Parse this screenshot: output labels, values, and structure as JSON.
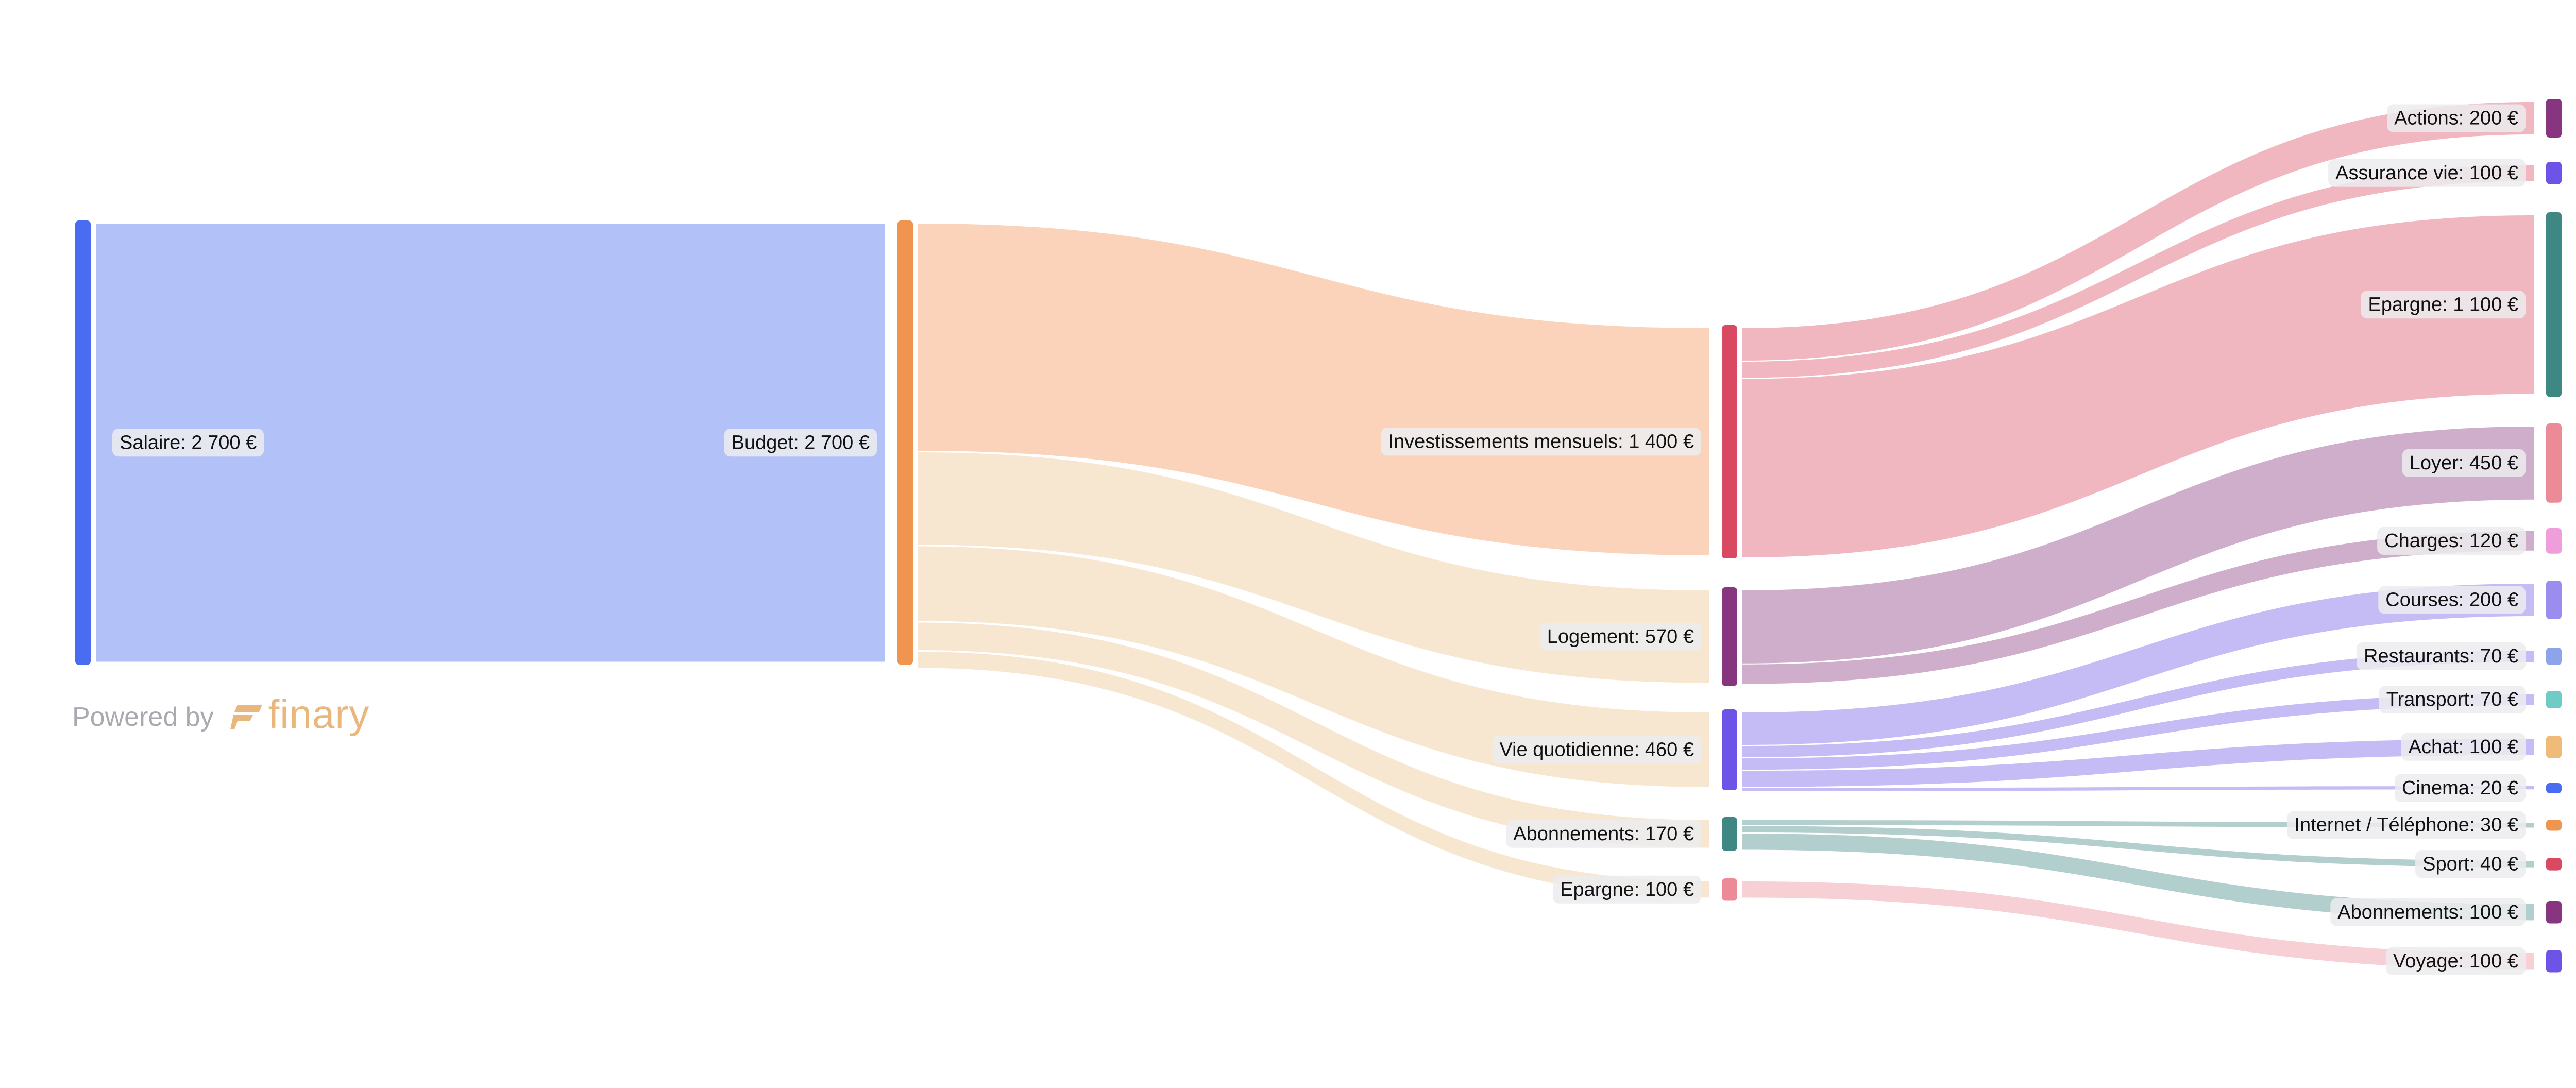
{
  "chart_data": {
    "type": "sankey",
    "currency_suffix": " €",
    "nodes": [
      {
        "id": "salaire",
        "label": "Salaire: 2 700 €",
        "value": 2700,
        "color": "#4a6cf0"
      },
      {
        "id": "budget",
        "label": "Budget: 2 700 €",
        "value": 2700,
        "color": "#f0954f"
      },
      {
        "id": "invest",
        "label": "Investissements mensuels: 1 400 €",
        "value": 1400,
        "color": "#d94a62"
      },
      {
        "id": "logement",
        "label": "Logement: 570 €",
        "value": 570,
        "color": "#86357e"
      },
      {
        "id": "vie",
        "label": "Vie quotidienne: 460 €",
        "value": 460,
        "color": "#6e54e6"
      },
      {
        "id": "abos",
        "label": "Abonnements: 170 €",
        "value": 170,
        "color": "#3e8783"
      },
      {
        "id": "epargne_mid",
        "label": "Epargne: 100 €",
        "value": 100,
        "color": "#ec8a98"
      },
      {
        "id": "actions",
        "label": "Actions: 200 €",
        "value": 200,
        "color": "#86357e"
      },
      {
        "id": "assurance",
        "label": "Assurance vie: 100 €",
        "value": 100,
        "color": "#6e54e6"
      },
      {
        "id": "epargne",
        "label": "Epargne: 1 100 €",
        "value": 1100,
        "color": "#3e8783"
      },
      {
        "id": "loyer",
        "label": "Loyer: 450 €",
        "value": 450,
        "color": "#ec8a98"
      },
      {
        "id": "charges",
        "label": "Charges: 120 €",
        "value": 120,
        "color": "#ee9fdb"
      },
      {
        "id": "courses",
        "label": "Courses: 200 €",
        "value": 200,
        "color": "#9b8df0"
      },
      {
        "id": "restaurants",
        "label": "Restaurants: 70 €",
        "value": 70,
        "color": "#8ea4ea"
      },
      {
        "id": "transport",
        "label": "Transport: 70 €",
        "value": 70,
        "color": "#70cbc7"
      },
      {
        "id": "achat",
        "label": "Achat: 100 €",
        "value": 100,
        "color": "#f0bb78"
      },
      {
        "id": "cinema",
        "label": "Cinema: 20 €",
        "value": 20,
        "color": "#4a6cf0"
      },
      {
        "id": "internet",
        "label": "Internet / Téléphone: 30 €",
        "value": 30,
        "color": "#f0954f"
      },
      {
        "id": "sport",
        "label": "Sport: 40 €",
        "value": 40,
        "color": "#d94a62"
      },
      {
        "id": "abonnements",
        "label": "Abonnements: 100 €",
        "value": 100,
        "color": "#86357e"
      },
      {
        "id": "voyage",
        "label": "Voyage: 100 €",
        "value": 100,
        "color": "#6e54e6"
      }
    ],
    "links": [
      {
        "source": "salaire",
        "target": "budget",
        "value": 2700
      },
      {
        "source": "budget",
        "target": "invest",
        "value": 1400
      },
      {
        "source": "budget",
        "target": "logement",
        "value": 570
      },
      {
        "source": "budget",
        "target": "vie",
        "value": 460
      },
      {
        "source": "budget",
        "target": "abos",
        "value": 170
      },
      {
        "source": "budget",
        "target": "epargne_mid",
        "value": 100
      },
      {
        "source": "invest",
        "target": "actions",
        "value": 200
      },
      {
        "source": "invest",
        "target": "assurance",
        "value": 100
      },
      {
        "source": "invest",
        "target": "epargne",
        "value": 1100
      },
      {
        "source": "logement",
        "target": "loyer",
        "value": 450
      },
      {
        "source": "logement",
        "target": "charges",
        "value": 120
      },
      {
        "source": "vie",
        "target": "courses",
        "value": 200
      },
      {
        "source": "vie",
        "target": "restaurants",
        "value": 70
      },
      {
        "source": "vie",
        "target": "transport",
        "value": 70
      },
      {
        "source": "vie",
        "target": "achat",
        "value": 100
      },
      {
        "source": "vie",
        "target": "cinema",
        "value": 20
      },
      {
        "source": "abos",
        "target": "internet",
        "value": 30
      },
      {
        "source": "abos",
        "target": "sport",
        "value": 40
      },
      {
        "source": "abos",
        "target": "abonnements",
        "value": 100
      },
      {
        "source": "epargne_mid",
        "target": "voyage",
        "value": 100
      }
    ]
  },
  "footer": {
    "powered_by": "Powered by",
    "brand_name": "finary",
    "brand_color": "#e9b77c"
  }
}
